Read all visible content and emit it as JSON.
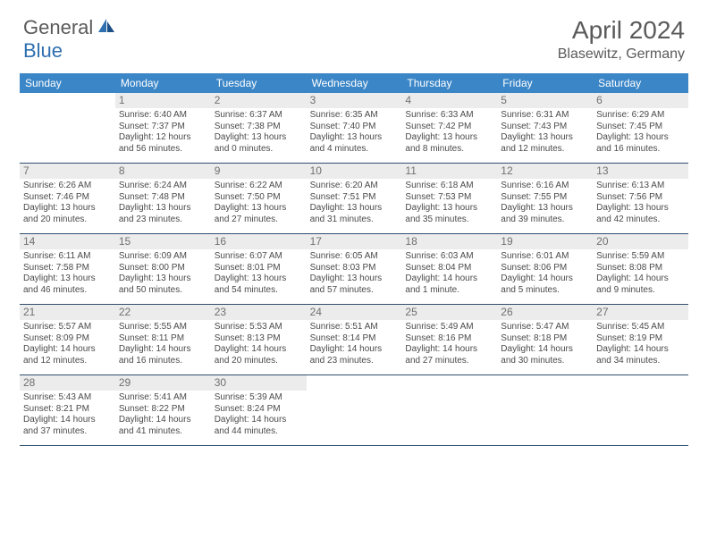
{
  "logo": {
    "text1": "General",
    "text2": "Blue"
  },
  "title": "April 2024",
  "location": "Blasewitz, Germany",
  "colors": {
    "header_bg": "#3b86c7",
    "header_text": "#ffffff",
    "daynum_bg": "#ececec",
    "daynum_text": "#707070",
    "body_text": "#4a4a4a",
    "rule": "#2f4f6f",
    "logo_gray": "#5a5a5a",
    "logo_blue": "#2f6fb0"
  },
  "dow": [
    "Sunday",
    "Monday",
    "Tuesday",
    "Wednesday",
    "Thursday",
    "Friday",
    "Saturday"
  ],
  "weeks": [
    [
      null,
      {
        "n": "1",
        "sr": "6:40 AM",
        "ss": "7:37 PM",
        "dl": "12 hours and 56 minutes."
      },
      {
        "n": "2",
        "sr": "6:37 AM",
        "ss": "7:38 PM",
        "dl": "13 hours and 0 minutes."
      },
      {
        "n": "3",
        "sr": "6:35 AM",
        "ss": "7:40 PM",
        "dl": "13 hours and 4 minutes."
      },
      {
        "n": "4",
        "sr": "6:33 AM",
        "ss": "7:42 PM",
        "dl": "13 hours and 8 minutes."
      },
      {
        "n": "5",
        "sr": "6:31 AM",
        "ss": "7:43 PM",
        "dl": "13 hours and 12 minutes."
      },
      {
        "n": "6",
        "sr": "6:29 AM",
        "ss": "7:45 PM",
        "dl": "13 hours and 16 minutes."
      }
    ],
    [
      {
        "n": "7",
        "sr": "6:26 AM",
        "ss": "7:46 PM",
        "dl": "13 hours and 20 minutes."
      },
      {
        "n": "8",
        "sr": "6:24 AM",
        "ss": "7:48 PM",
        "dl": "13 hours and 23 minutes."
      },
      {
        "n": "9",
        "sr": "6:22 AM",
        "ss": "7:50 PM",
        "dl": "13 hours and 27 minutes."
      },
      {
        "n": "10",
        "sr": "6:20 AM",
        "ss": "7:51 PM",
        "dl": "13 hours and 31 minutes."
      },
      {
        "n": "11",
        "sr": "6:18 AM",
        "ss": "7:53 PM",
        "dl": "13 hours and 35 minutes."
      },
      {
        "n": "12",
        "sr": "6:16 AM",
        "ss": "7:55 PM",
        "dl": "13 hours and 39 minutes."
      },
      {
        "n": "13",
        "sr": "6:13 AM",
        "ss": "7:56 PM",
        "dl": "13 hours and 42 minutes."
      }
    ],
    [
      {
        "n": "14",
        "sr": "6:11 AM",
        "ss": "7:58 PM",
        "dl": "13 hours and 46 minutes."
      },
      {
        "n": "15",
        "sr": "6:09 AM",
        "ss": "8:00 PM",
        "dl": "13 hours and 50 minutes."
      },
      {
        "n": "16",
        "sr": "6:07 AM",
        "ss": "8:01 PM",
        "dl": "13 hours and 54 minutes."
      },
      {
        "n": "17",
        "sr": "6:05 AM",
        "ss": "8:03 PM",
        "dl": "13 hours and 57 minutes."
      },
      {
        "n": "18",
        "sr": "6:03 AM",
        "ss": "8:04 PM",
        "dl": "14 hours and 1 minute."
      },
      {
        "n": "19",
        "sr": "6:01 AM",
        "ss": "8:06 PM",
        "dl": "14 hours and 5 minutes."
      },
      {
        "n": "20",
        "sr": "5:59 AM",
        "ss": "8:08 PM",
        "dl": "14 hours and 9 minutes."
      }
    ],
    [
      {
        "n": "21",
        "sr": "5:57 AM",
        "ss": "8:09 PM",
        "dl": "14 hours and 12 minutes."
      },
      {
        "n": "22",
        "sr": "5:55 AM",
        "ss": "8:11 PM",
        "dl": "14 hours and 16 minutes."
      },
      {
        "n": "23",
        "sr": "5:53 AM",
        "ss": "8:13 PM",
        "dl": "14 hours and 20 minutes."
      },
      {
        "n": "24",
        "sr": "5:51 AM",
        "ss": "8:14 PM",
        "dl": "14 hours and 23 minutes."
      },
      {
        "n": "25",
        "sr": "5:49 AM",
        "ss": "8:16 PM",
        "dl": "14 hours and 27 minutes."
      },
      {
        "n": "26",
        "sr": "5:47 AM",
        "ss": "8:18 PM",
        "dl": "14 hours and 30 minutes."
      },
      {
        "n": "27",
        "sr": "5:45 AM",
        "ss": "8:19 PM",
        "dl": "14 hours and 34 minutes."
      }
    ],
    [
      {
        "n": "28",
        "sr": "5:43 AM",
        "ss": "8:21 PM",
        "dl": "14 hours and 37 minutes."
      },
      {
        "n": "29",
        "sr": "5:41 AM",
        "ss": "8:22 PM",
        "dl": "14 hours and 41 minutes."
      },
      {
        "n": "30",
        "sr": "5:39 AM",
        "ss": "8:24 PM",
        "dl": "14 hours and 44 minutes."
      },
      null,
      null,
      null,
      null
    ]
  ],
  "labels": {
    "sunrise": "Sunrise:",
    "sunset": "Sunset:",
    "daylight": "Daylight:"
  }
}
